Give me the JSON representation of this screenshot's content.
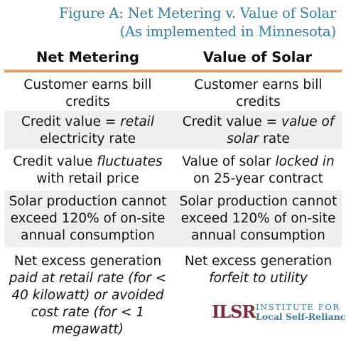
{
  "title": {
    "line1": "Figure A: Net Metering v. Value of Solar",
    "line2": "(As implemented in Minnesota)"
  },
  "columns": {
    "left": "Net Metering",
    "right": "Value of Solar"
  },
  "rows": [
    {
      "left": [
        {
          "t": "Customer earns bill credits",
          "i": false
        }
      ],
      "right": [
        {
          "t": "Customer earns bill credits",
          "i": false
        }
      ]
    },
    {
      "left": [
        {
          "t": "Credit value = ",
          "i": false
        },
        {
          "t": "retail",
          "i": true
        },
        {
          "t": " electricity rate",
          "i": false
        }
      ],
      "right": [
        {
          "t": "Credit value = ",
          "i": false
        },
        {
          "t": "value of solar",
          "i": true
        },
        {
          "t": " rate",
          "i": false
        }
      ]
    },
    {
      "left": [
        {
          "t": "Credit value ",
          "i": false
        },
        {
          "t": "fluctuates",
          "i": true
        },
        {
          "t": " with retail price",
          "i": false
        }
      ],
      "right": [
        {
          "t": "Value of solar ",
          "i": false
        },
        {
          "t": "locked in",
          "i": true
        },
        {
          "t": " on 25-year contract",
          "i": false
        }
      ]
    },
    {
      "left": [
        {
          "t": "Solar production cannot exceed 120% of on-site annual consumption",
          "i": false
        }
      ],
      "right": [
        {
          "t": "Solar production cannot exceed 120% of on-site annual consumption",
          "i": false
        }
      ]
    },
    {
      "left": [
        {
          "t": "Net excess generation ",
          "i": false
        },
        {
          "t": "paid at retail rate (for < 40 kilowatt) or avoided cost rate (for < 1 megawatt)",
          "i": true
        }
      ],
      "right": [
        {
          "t": "Net excess generation ",
          "i": false
        },
        {
          "t": "forfeit to utility",
          "i": true
        }
      ]
    }
  ],
  "logo": {
    "mark": "ILSR",
    "line1": "INSTITUTE FOR",
    "line2": "Local Self-Reliance"
  },
  "colors": {
    "title": "#2f7ea0",
    "rule": "#e0a067",
    "shade": "#efefef",
    "logo_mark": "#7d2a3a"
  }
}
